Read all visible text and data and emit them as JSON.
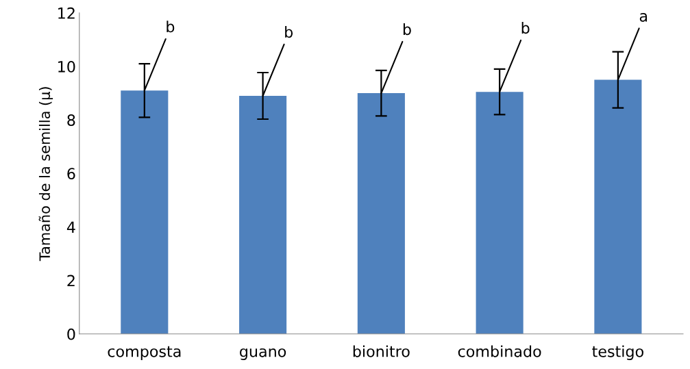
{
  "chart_data": {
    "type": "bar",
    "ylabel": "Tamaño de la semilla (µ)",
    "categories": [
      "composta",
      "guano",
      "bionitro",
      "combinado",
      "testigo"
    ],
    "values": [
      9.1,
      8.9,
      9.0,
      9.05,
      9.5
    ],
    "errors": [
      1.0,
      0.87,
      0.85,
      0.85,
      1.05
    ],
    "color": "#4f81bd",
    "ylim": [
      0,
      12
    ],
    "yticks": [
      0,
      2,
      4,
      6,
      8,
      10,
      12
    ],
    "grid": false,
    "annotations": [
      {
        "text": "b",
        "x": "composta",
        "y": 9.1
      },
      {
        "text": "b",
        "x": "guano",
        "y": 8.9
      },
      {
        "text": "b",
        "x": "bionitro",
        "y": 9.0
      },
      {
        "text": "b",
        "x": "combinado",
        "y": 9.05
      },
      {
        "text": "a",
        "x": "testigo",
        "y": 9.5
      }
    ]
  }
}
